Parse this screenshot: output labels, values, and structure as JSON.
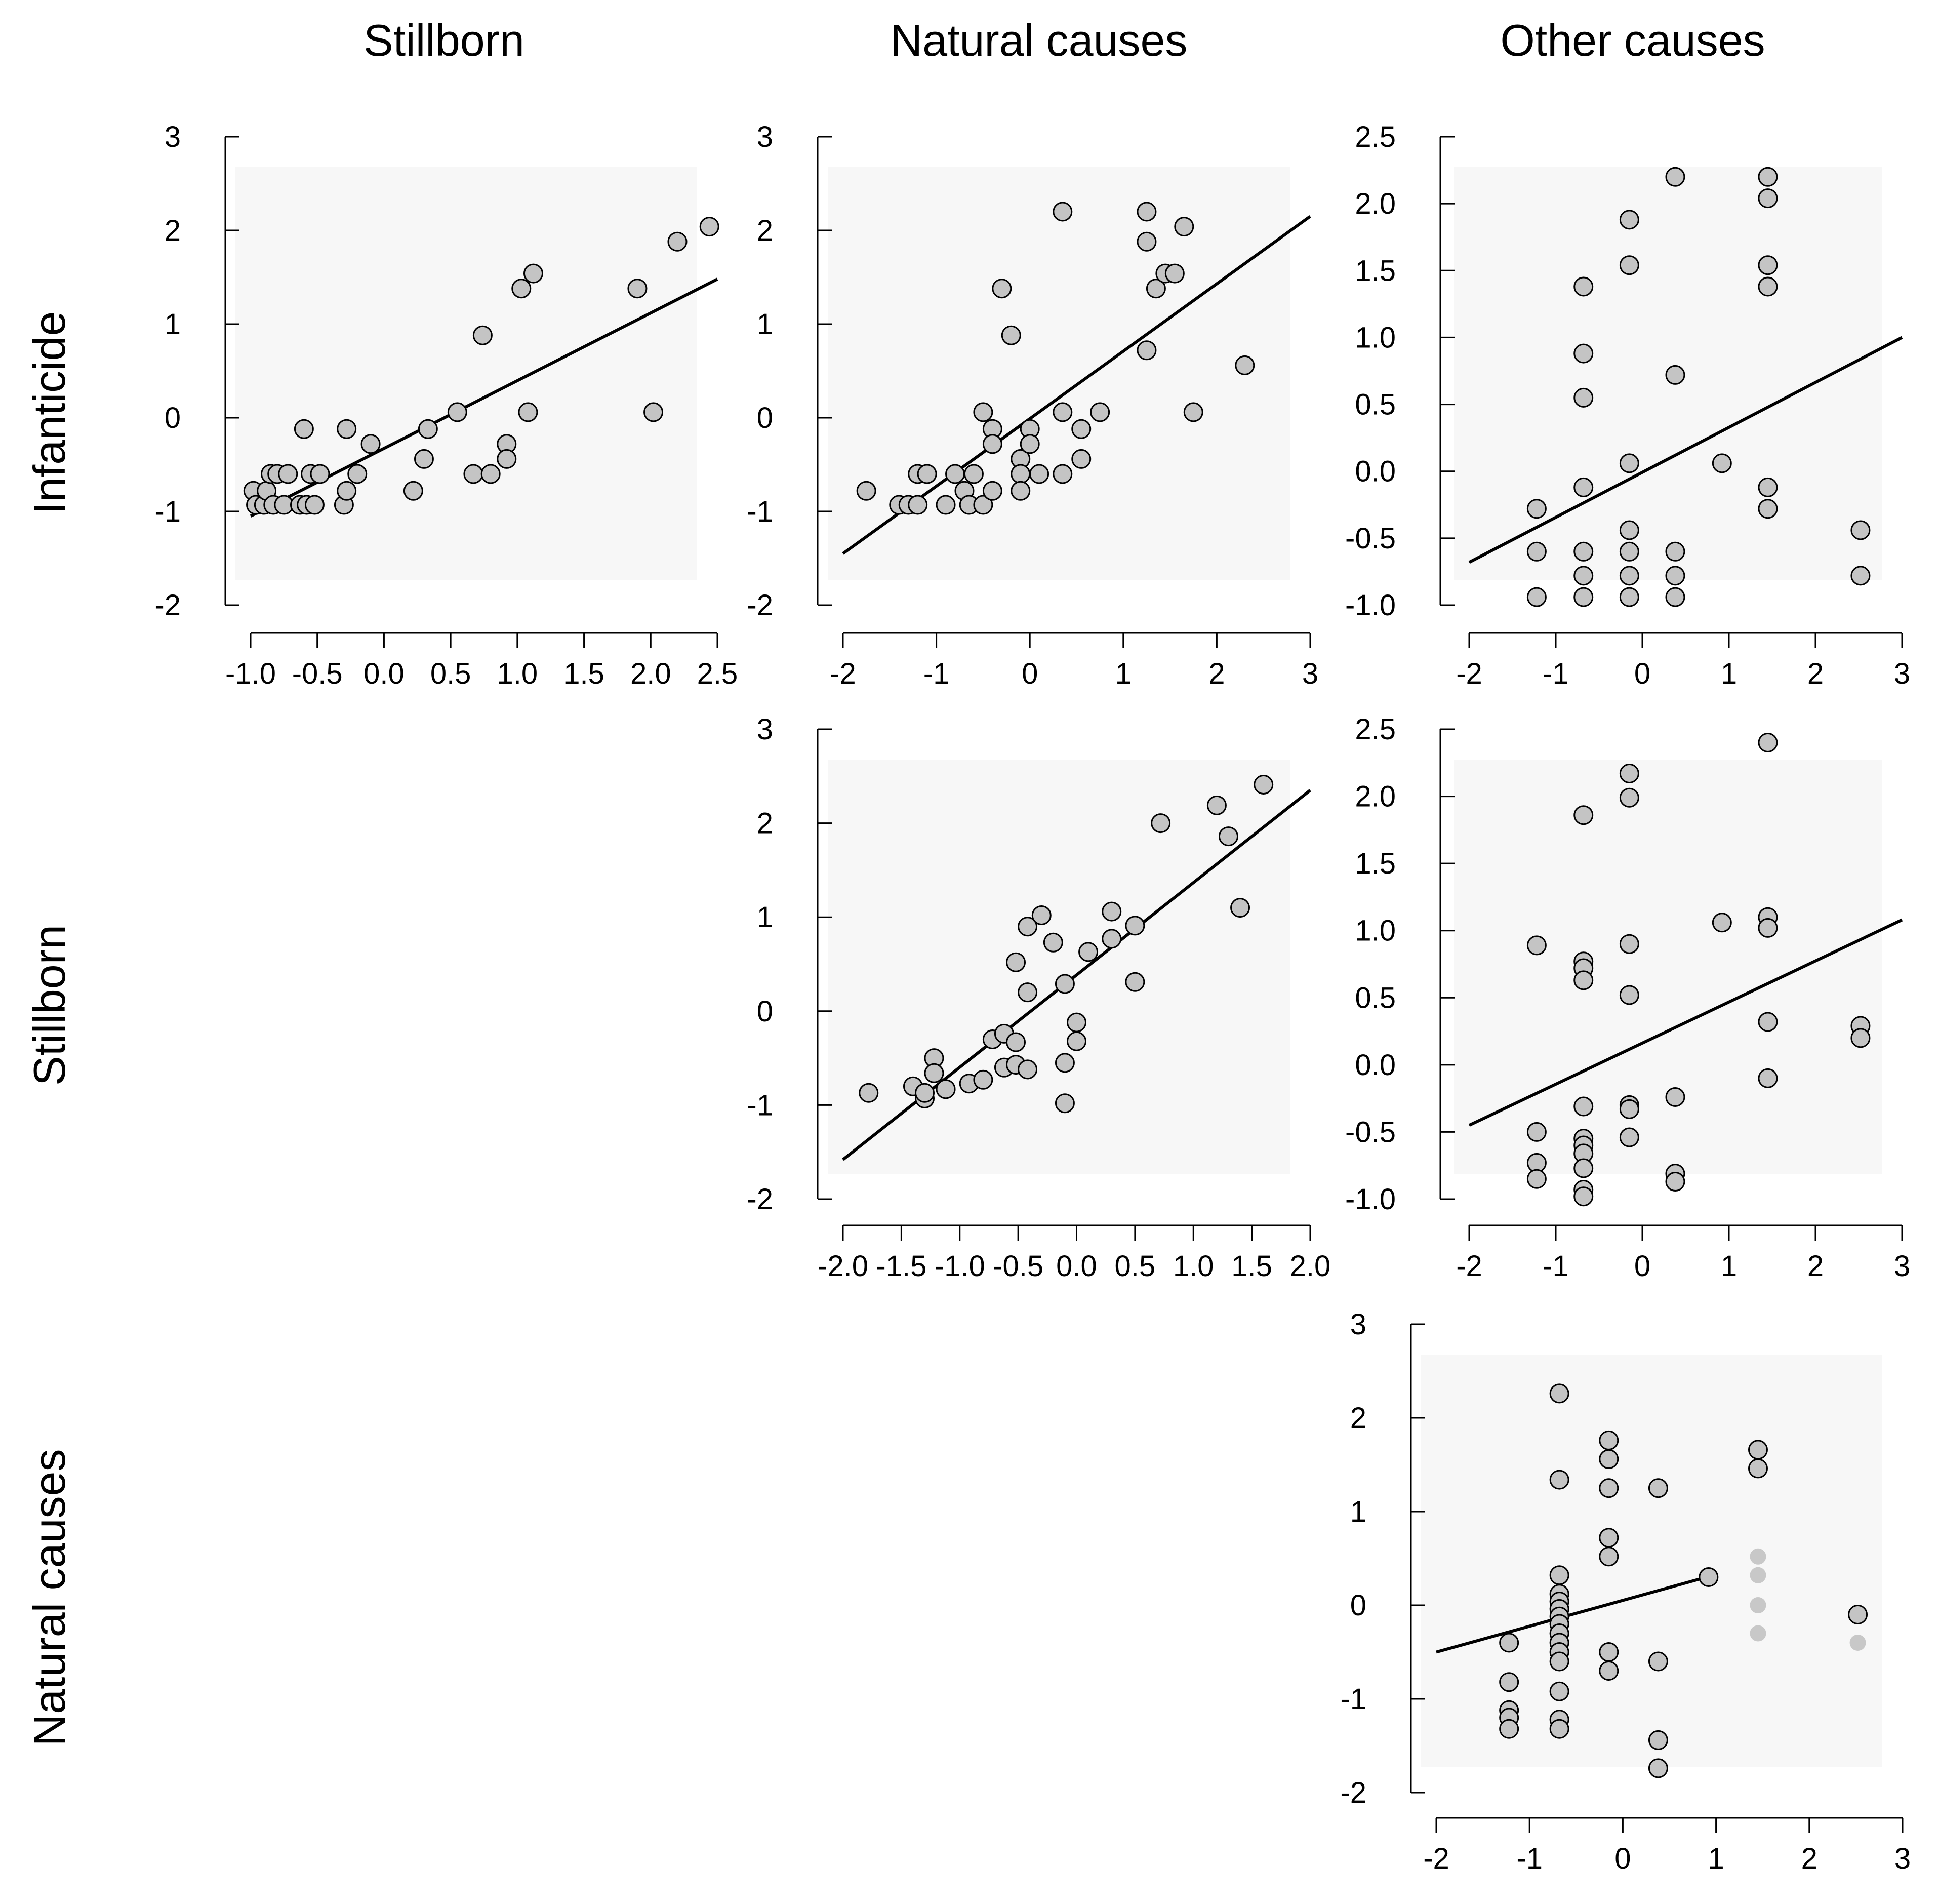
{
  "column_titles": [
    "Stillborn",
    "Natural causes",
    "Other causes"
  ],
  "row_titles": [
    "Infanticide",
    "Stillborn",
    "Natural causes"
  ],
  "colors": {
    "point_fill": "#c4c4c4",
    "point_stroke": "#000000",
    "line": "#000000"
  },
  "chart_data": [
    {
      "id": "infanticide-vs-stillborn",
      "type": "scatter",
      "row": "Infanticide",
      "column": "Stillborn",
      "xlim": [
        -1.0,
        2.5
      ],
      "ylim": [
        -2,
        3
      ],
      "xticks": [
        -1.0,
        -0.5,
        0.0,
        0.5,
        1.0,
        1.5,
        2.0,
        2.5
      ],
      "xtick_labels": [
        "-1.0",
        "-0.5",
        "0.0",
        "0.5",
        "1.0",
        "1.5",
        "2.0",
        "2.5"
      ],
      "yticks": [
        -2,
        -1,
        0,
        1,
        2,
        3
      ],
      "ytick_labels": [
        "-2",
        "-1",
        "0",
        "1",
        "2",
        "3"
      ],
      "fit_line": {
        "x": [
          -1.0,
          2.5
        ],
        "y": [
          -1.05,
          1.48
        ]
      },
      "points": [
        [
          -0.98,
          -0.78
        ],
        [
          -0.96,
          -0.93
        ],
        [
          -0.9,
          -0.93
        ],
        [
          -0.88,
          -0.78
        ],
        [
          -0.85,
          -0.6
        ],
        [
          -0.83,
          -0.93
        ],
        [
          -0.8,
          -0.6
        ],
        [
          -0.75,
          -0.93
        ],
        [
          -0.72,
          -0.6
        ],
        [
          -0.63,
          -0.93
        ],
        [
          -0.6,
          -0.12
        ],
        [
          -0.58,
          -0.93
        ],
        [
          -0.55,
          -0.6
        ],
        [
          -0.52,
          -0.93
        ],
        [
          -0.48,
          -0.6
        ],
        [
          -0.3,
          -0.93
        ],
        [
          -0.28,
          -0.78
        ],
        [
          -0.28,
          -0.12
        ],
        [
          -0.2,
          -0.6
        ],
        [
          -0.1,
          -0.28
        ],
        [
          0.22,
          -0.78
        ],
        [
          0.3,
          -0.44
        ],
        [
          0.33,
          -0.12
        ],
        [
          0.55,
          0.06
        ],
        [
          0.67,
          -0.6
        ],
        [
          0.74,
          0.88
        ],
        [
          0.8,
          -0.6
        ],
        [
          0.92,
          -0.28
        ],
        [
          0.92,
          -0.44
        ],
        [
          1.03,
          1.38
        ],
        [
          1.08,
          0.06
        ],
        [
          1.12,
          1.54
        ],
        [
          1.9,
          1.38
        ],
        [
          2.02,
          0.06
        ],
        [
          2.2,
          1.88
        ],
        [
          2.44,
          2.04
        ]
      ]
    },
    {
      "id": "infanticide-vs-natural",
      "type": "scatter",
      "row": "Infanticide",
      "column": "Natural causes",
      "xlim": [
        -2,
        3
      ],
      "ylim": [
        -2,
        3
      ],
      "xticks": [
        -2,
        -1,
        0,
        1,
        2,
        3
      ],
      "xtick_labels": [
        "-2",
        "-1",
        "0",
        "1",
        "2",
        "3"
      ],
      "yticks": [
        -2,
        -1,
        0,
        1,
        2,
        3
      ],
      "ytick_labels": [
        "-2",
        "-1",
        "0",
        "1",
        "2",
        "3"
      ],
      "fit_line": {
        "x": [
          -2,
          3
        ],
        "y": [
          -1.45,
          2.15
        ]
      },
      "points": [
        [
          -1.75,
          -0.78
        ],
        [
          -1.4,
          -0.93
        ],
        [
          -1.3,
          -0.93
        ],
        [
          -1.2,
          -0.93
        ],
        [
          -1.2,
          -0.6
        ],
        [
          -1.1,
          -0.6
        ],
        [
          -0.9,
          -0.93
        ],
        [
          -0.8,
          -0.6
        ],
        [
          -0.7,
          -0.78
        ],
        [
          -0.65,
          -0.93
        ],
        [
          -0.6,
          -0.6
        ],
        [
          -0.5,
          -0.93
        ],
        [
          -0.5,
          0.06
        ],
        [
          -0.4,
          -0.12
        ],
        [
          -0.4,
          -0.28
        ],
        [
          -0.4,
          -0.78
        ],
        [
          -0.3,
          1.38
        ],
        [
          -0.2,
          0.88
        ],
        [
          -0.1,
          -0.44
        ],
        [
          -0.1,
          -0.6
        ],
        [
          -0.1,
          -0.78
        ],
        [
          0.0,
          -0.12
        ],
        [
          0.0,
          -0.28
        ],
        [
          0.1,
          -0.6
        ],
        [
          0.35,
          2.2
        ],
        [
          0.35,
          0.06
        ],
        [
          0.35,
          -0.6
        ],
        [
          0.55,
          -0.12
        ],
        [
          0.55,
          -0.44
        ],
        [
          0.75,
          0.06
        ],
        [
          1.25,
          2.2
        ],
        [
          1.25,
          1.88
        ],
        [
          1.25,
          0.72
        ],
        [
          1.35,
          1.38
        ],
        [
          1.45,
          1.54
        ],
        [
          1.55,
          1.54
        ],
        [
          1.65,
          2.04
        ],
        [
          1.75,
          0.06
        ],
        [
          2.3,
          0.56
        ]
      ]
    },
    {
      "id": "infanticide-vs-other",
      "type": "scatter",
      "row": "Infanticide",
      "column": "Other causes",
      "xlim": [
        -2,
        3
      ],
      "ylim": [
        -1.0,
        2.5
      ],
      "xticks": [
        -2,
        -1,
        0,
        1,
        2,
        3
      ],
      "xtick_labels": [
        "-2",
        "-1",
        "0",
        "1",
        "2",
        "3"
      ],
      "yticks": [
        -1.0,
        -0.5,
        0.0,
        0.5,
        1.0,
        1.5,
        2.0,
        2.5
      ],
      "ytick_labels": [
        "-1.0",
        "-0.5",
        "0.0",
        "0.5",
        "1.0",
        "1.5",
        "2.0",
        "2.5"
      ],
      "fit_line": {
        "x": [
          -2,
          3
        ],
        "y": [
          -0.68,
          1.0
        ]
      },
      "points": [
        [
          -1.22,
          -0.28
        ],
        [
          -1.22,
          -0.6
        ],
        [
          -1.22,
          -0.94
        ],
        [
          -0.68,
          1.38
        ],
        [
          -0.68,
          0.88
        ],
        [
          -0.68,
          0.55
        ],
        [
          -0.68,
          -0.12
        ],
        [
          -0.68,
          -0.6
        ],
        [
          -0.68,
          -0.78
        ],
        [
          -0.68,
          -0.94
        ],
        [
          -0.15,
          1.88
        ],
        [
          -0.15,
          1.54
        ],
        [
          -0.15,
          0.06
        ],
        [
          -0.15,
          -0.44
        ],
        [
          -0.15,
          -0.6
        ],
        [
          -0.15,
          -0.78
        ],
        [
          -0.15,
          -0.94
        ],
        [
          0.38,
          2.2
        ],
        [
          0.38,
          0.72
        ],
        [
          0.38,
          -0.6
        ],
        [
          0.38,
          -0.78
        ],
        [
          0.38,
          -0.94
        ],
        [
          0.92,
          0.06
        ],
        [
          1.45,
          2.2
        ],
        [
          1.45,
          2.04
        ],
        [
          1.45,
          1.54
        ],
        [
          1.45,
          1.38
        ],
        [
          1.45,
          -0.12
        ],
        [
          1.45,
          -0.28
        ],
        [
          2.52,
          -0.44
        ],
        [
          2.52,
          -0.78
        ]
      ]
    },
    {
      "id": "stillborn-vs-natural",
      "type": "scatter",
      "row": "Stillborn",
      "column": "Natural causes",
      "xlim": [
        -2.0,
        2.0
      ],
      "ylim": [
        -2,
        3
      ],
      "xticks": [
        -2.0,
        -1.5,
        -1.0,
        -0.5,
        0.0,
        0.5,
        1.0,
        1.5,
        2.0
      ],
      "xtick_labels": [
        "-2.0",
        "-1.5",
        "-1.0",
        "-0.5",
        "0.0",
        "0.5",
        "1.0",
        "1.5",
        "2.0"
      ],
      "yticks": [
        -2,
        -1,
        0,
        1,
        2,
        3
      ],
      "ytick_labels": [
        "-2",
        "-1",
        "0",
        "1",
        "2",
        "3"
      ],
      "fit_line": {
        "x": [
          -2.0,
          2.0
        ],
        "y": [
          -1.58,
          2.35
        ]
      },
      "points": [
        [
          -1.78,
          -0.87
        ],
        [
          -1.4,
          -0.8
        ],
        [
          -1.3,
          -0.93
        ],
        [
          -1.3,
          -0.87
        ],
        [
          -1.22,
          -0.5
        ],
        [
          -1.22,
          -0.66
        ],
        [
          -1.12,
          -0.83
        ],
        [
          -0.92,
          -0.77
        ],
        [
          -0.8,
          -0.73
        ],
        [
          -0.72,
          -0.3
        ],
        [
          -0.62,
          -0.24
        ],
        [
          -0.62,
          -0.6
        ],
        [
          -0.52,
          -0.57
        ],
        [
          -0.52,
          -0.33
        ],
        [
          -0.52,
          0.52
        ],
        [
          -0.42,
          0.9
        ],
        [
          -0.42,
          0.2
        ],
        [
          -0.42,
          -0.62
        ],
        [
          -0.3,
          1.02
        ],
        [
          -0.2,
          0.73
        ],
        [
          -0.1,
          -0.55
        ],
        [
          -0.1,
          -0.98
        ],
        [
          -0.1,
          0.29
        ],
        [
          0.0,
          -0.12
        ],
        [
          0.0,
          -0.32
        ],
        [
          0.1,
          0.63
        ],
        [
          0.3,
          1.06
        ],
        [
          0.3,
          0.77
        ],
        [
          0.5,
          0.91
        ],
        [
          0.5,
          0.31
        ],
        [
          0.72,
          2.0
        ],
        [
          1.2,
          2.19
        ],
        [
          1.3,
          1.86
        ],
        [
          1.4,
          1.1
        ],
        [
          1.6,
          2.41
        ]
      ]
    },
    {
      "id": "stillborn-vs-other",
      "type": "scatter",
      "row": "Stillborn",
      "column": "Other causes",
      "xlim": [
        -2,
        3
      ],
      "ylim": [
        -1.0,
        2.5
      ],
      "xticks": [
        -2,
        -1,
        0,
        1,
        2,
        3
      ],
      "xtick_labels": [
        "-2",
        "-1",
        "0",
        "1",
        "2",
        "3"
      ],
      "yticks": [
        -1.0,
        -0.5,
        0.0,
        0.5,
        1.0,
        1.5,
        2.0,
        2.5
      ],
      "ytick_labels": [
        "-1.0",
        "-0.5",
        "0.0",
        "0.5",
        "1.0",
        "1.5",
        "2.0",
        "2.5"
      ],
      "fit_line": {
        "x": [
          -2,
          3
        ],
        "y": [
          -0.45,
          1.08
        ]
      },
      "points": [
        [
          -1.22,
          0.89
        ],
        [
          -1.22,
          -0.5
        ],
        [
          -1.22,
          -0.73
        ],
        [
          -1.22,
          -0.85
        ],
        [
          -0.68,
          1.86
        ],
        [
          -0.68,
          0.77
        ],
        [
          -0.68,
          0.72
        ],
        [
          -0.68,
          0.63
        ],
        [
          -0.68,
          -0.31
        ],
        [
          -0.68,
          -0.55
        ],
        [
          -0.68,
          -0.6
        ],
        [
          -0.68,
          -0.66
        ],
        [
          -0.68,
          -0.77
        ],
        [
          -0.68,
          -0.93
        ],
        [
          -0.68,
          -0.98
        ],
        [
          -0.15,
          2.17
        ],
        [
          -0.15,
          1.99
        ],
        [
          -0.15,
          0.9
        ],
        [
          -0.15,
          0.52
        ],
        [
          -0.15,
          -0.3
        ],
        [
          -0.15,
          -0.33
        ],
        [
          -0.15,
          -0.54
        ],
        [
          0.38,
          -0.24
        ],
        [
          0.38,
          -0.81
        ],
        [
          0.38,
          -0.87
        ],
        [
          0.92,
          1.06
        ],
        [
          1.45,
          2.4
        ],
        [
          1.45,
          1.1
        ],
        [
          1.45,
          1.02
        ],
        [
          1.45,
          0.32
        ],
        [
          1.45,
          -0.1
        ],
        [
          2.52,
          0.29
        ],
        [
          2.52,
          0.2
        ]
      ]
    },
    {
      "id": "natural-vs-other",
      "type": "scatter",
      "row": "Natural causes",
      "column": "Other causes",
      "xlim": [
        -2,
        3
      ],
      "ylim": [
        -2,
        3
      ],
      "xticks": [
        -2,
        -1,
        0,
        1,
        2,
        3
      ],
      "xtick_labels": [
        "-2",
        "-1",
        "0",
        "1",
        "2",
        "3"
      ],
      "yticks": [
        -2,
        -1,
        0,
        1,
        2,
        3
      ],
      "ytick_labels": [
        "-2",
        "-1",
        "0",
        "1",
        "2",
        "3"
      ],
      "fit_line": {
        "x": [
          -2,
          0.9
        ],
        "y": [
          -0.5,
          0.3
        ]
      },
      "points": [
        [
          -1.22,
          -0.4
        ],
        [
          -1.22,
          -0.82
        ],
        [
          -1.22,
          -1.12
        ],
        [
          -1.22,
          -1.2
        ],
        [
          -1.22,
          -1.32
        ],
        [
          -0.68,
          2.26
        ],
        [
          -0.68,
          1.34
        ],
        [
          -0.68,
          0.32
        ],
        [
          -0.68,
          0.12
        ],
        [
          -0.68,
          0.04
        ],
        [
          -0.68,
          -0.04
        ],
        [
          -0.68,
          -0.12
        ],
        [
          -0.68,
          -0.2
        ],
        [
          -0.68,
          -0.3
        ],
        [
          -0.68,
          -0.4
        ],
        [
          -0.68,
          -0.5
        ],
        [
          -0.68,
          -0.6
        ],
        [
          -0.68,
          -0.92
        ],
        [
          -0.68,
          -1.22
        ],
        [
          -0.68,
          -1.32
        ],
        [
          -0.15,
          1.76
        ],
        [
          -0.15,
          1.56
        ],
        [
          -0.15,
          1.25
        ],
        [
          -0.15,
          0.72
        ],
        [
          -0.15,
          0.52
        ],
        [
          -0.15,
          -0.5
        ],
        [
          -0.15,
          -0.7
        ],
        [
          0.38,
          1.25
        ],
        [
          0.38,
          -0.6
        ],
        [
          0.38,
          -1.44
        ],
        [
          0.38,
          -1.74
        ],
        [
          0.92,
          0.3
        ],
        [
          1.45,
          1.66
        ],
        [
          1.45,
          1.46
        ],
        [
          2.52,
          -0.1
        ]
      ],
      "faded_points": [
        [
          1.45,
          0.52
        ],
        [
          1.45,
          0.32
        ],
        [
          1.45,
          0.0
        ],
        [
          1.45,
          -0.3
        ],
        [
          2.52,
          -0.4
        ]
      ]
    }
  ]
}
